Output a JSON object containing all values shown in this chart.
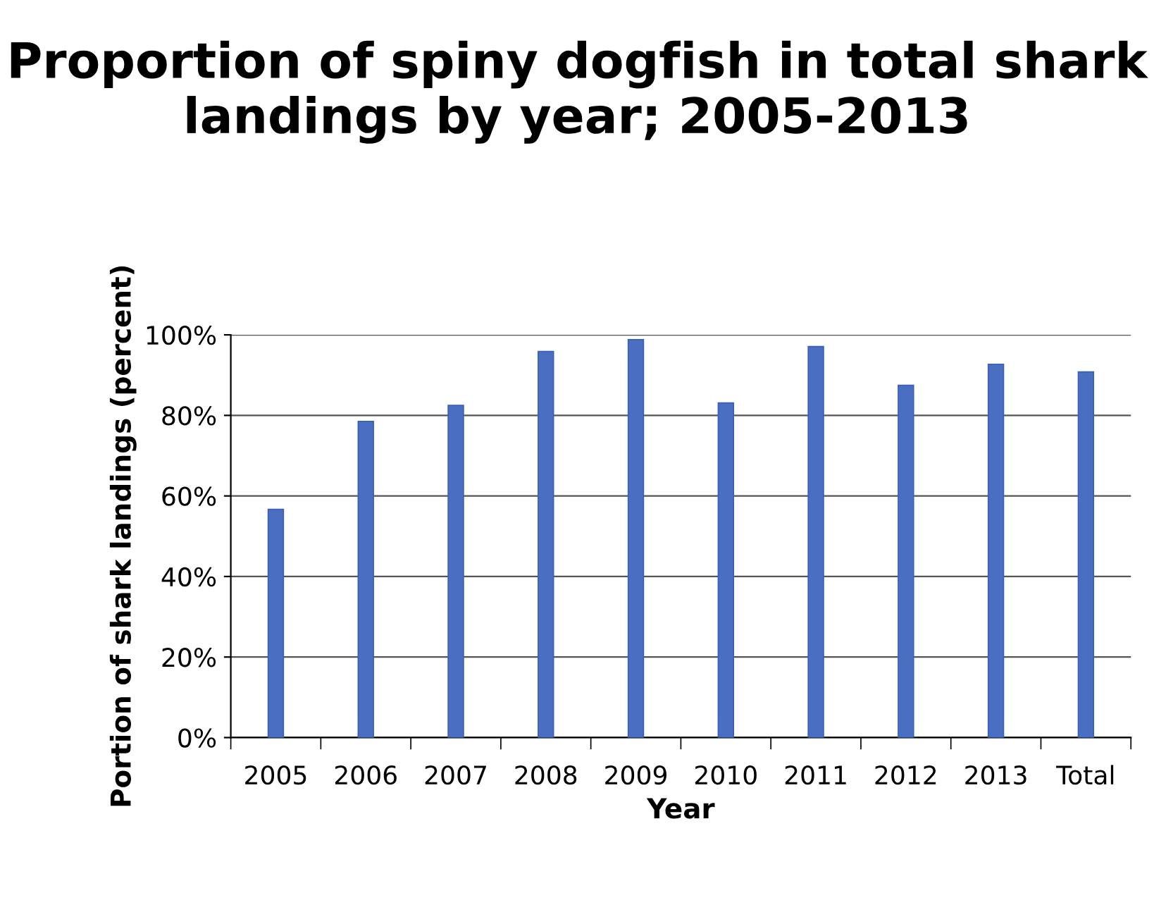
{
  "chart_data": {
    "type": "bar",
    "title": "Proportion of spiny dogfish in total shark landings by year; 2005-2013",
    "xlabel": "Year",
    "ylabel": "Portion of shark landings (percent)",
    "categories": [
      "2005",
      "2006",
      "2007",
      "2008",
      "2009",
      "2010",
      "2011",
      "2012",
      "2013",
      "Total"
    ],
    "values": [
      56.7,
      78.5,
      82.5,
      95.9,
      98.8,
      83.1,
      97.1,
      87.5,
      92.7,
      90.8
    ],
    "color": "#4a6fc2",
    "ylim": [
      0,
      100
    ],
    "yticks": [
      {
        "value": 0,
        "label": "0%"
      },
      {
        "value": 20,
        "label": "20%"
      },
      {
        "value": 40,
        "label": "40%"
      },
      {
        "value": 60,
        "label": "60%"
      },
      {
        "value": 80,
        "label": "80%"
      },
      {
        "value": 100,
        "label": "100%"
      }
    ],
    "grid": "y",
    "legend": false
  }
}
